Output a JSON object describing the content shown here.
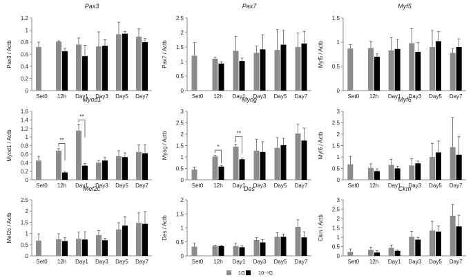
{
  "legend": {
    "items": [
      {
        "label": "1G",
        "color": "#8c8c8c"
      },
      {
        "label": "10⁻⁶G",
        "color": "#000000"
      }
    ]
  },
  "chart_data": [
    {
      "type": "bar",
      "title": "Pax3",
      "ylabel": "Pax3 / Actb",
      "ylim": [
        0,
        1.2
      ],
      "yticks": [
        "0",
        "0.2",
        "0.4",
        "0.6",
        "0.8",
        "1",
        "1.2"
      ],
      "categories": [
        "Set0",
        "12h",
        "Day1",
        "Day3",
        "Day5",
        "Day7"
      ],
      "series": [
        {
          "name": "1G",
          "color": "#8c8c8c",
          "values": [
            0.72,
            0.81,
            0.76,
            0.73,
            0.93,
            0.89
          ],
          "errors": [
            0.08,
            0.01,
            0.11,
            0.24,
            0.2,
            0.13
          ]
        },
        {
          "name": "10⁻⁶G",
          "color": "#000000",
          "values": [
            null,
            0.65,
            0.57,
            0.74,
            0.94,
            0.8
          ],
          "errors": [
            null,
            0.05,
            0.18,
            0.1,
            0.04,
            0.06
          ]
        }
      ],
      "annotations": []
    },
    {
      "type": "bar",
      "title": "Pax7",
      "ylabel": "Pax7 / Actb",
      "ylim": [
        0,
        2.5
      ],
      "yticks": [
        "0",
        "0.5",
        "1",
        "1.5",
        "2",
        "2.5"
      ],
      "categories": [
        "Set0",
        "12h",
        "Day1",
        "Day3",
        "Day5",
        "Day7"
      ],
      "series": [
        {
          "name": "1G",
          "color": "#8c8c8c",
          "values": [
            1.2,
            1.1,
            1.37,
            1.3,
            1.4,
            1.5
          ],
          "errors": [
            0.45,
            0.05,
            0.5,
            0.23,
            0.7,
            0.48
          ]
        },
        {
          "name": "10⁻⁶G",
          "color": "#000000",
          "values": [
            null,
            0.93,
            1.02,
            1.42,
            1.58,
            1.62
          ],
          "errors": [
            null,
            0.06,
            0.1,
            0.5,
            0.5,
            0.42
          ]
        }
      ],
      "annotations": []
    },
    {
      "type": "bar",
      "title": "Myf5",
      "ylabel": "Myf5 / Actb",
      "ylim": [
        0,
        1.5
      ],
      "yticks": [
        "0",
        "0.5",
        "1",
        "1.5"
      ],
      "categories": [
        "Set0",
        "12h",
        "Day1",
        "Day3",
        "Day5",
        "Day7"
      ],
      "series": [
        {
          "name": "1G",
          "color": "#8c8c8c",
          "values": [
            0.87,
            0.88,
            0.83,
            0.98,
            0.9,
            0.78
          ],
          "errors": [
            0.08,
            0.14,
            0.27,
            0.3,
            0.35,
            0.09
          ]
        },
        {
          "name": "10⁻⁶G",
          "color": "#000000",
          "values": [
            null,
            0.7,
            0.86,
            0.8,
            1.02,
            0.9
          ],
          "errors": [
            null,
            0.06,
            0.2,
            0.19,
            0.2,
            0.17
          ]
        }
      ],
      "annotations": []
    },
    {
      "type": "bar",
      "title": "Myod1",
      "ylabel": "Myod1 / Actb",
      "ylim": [
        0,
        1.6
      ],
      "yticks": [
        "0",
        "0.2",
        "0.4",
        "0.6",
        "0.8",
        "1",
        "1.2",
        "1.4",
        "1.6"
      ],
      "categories": [
        "Set0",
        "12h",
        "Day1",
        "Day3",
        "Day5",
        "Day7"
      ],
      "series": [
        {
          "name": "1G",
          "color": "#8c8c8c",
          "values": [
            0.45,
            0.68,
            1.15,
            0.4,
            0.55,
            0.65
          ],
          "errors": [
            0.1,
            0.05,
            0.15,
            0.05,
            0.13,
            0.17
          ]
        },
        {
          "name": "10⁻⁶G",
          "color": "#000000",
          "values": [
            null,
            0.17,
            0.33,
            0.45,
            0.53,
            0.62
          ],
          "errors": [
            null,
            0.02,
            0.05,
            0.07,
            0.1,
            0.2
          ]
        }
      ],
      "annotations": [
        {
          "category": "12h",
          "label": "**",
          "level": 0.85
        },
        {
          "category": "Day1",
          "label": "**",
          "level": 1.4
        }
      ]
    },
    {
      "type": "bar",
      "title": "Myog",
      "ylabel": "Myog / Actb",
      "ylim": [
        0,
        3
      ],
      "yticks": [
        "0",
        "0.5",
        "1",
        "1.5",
        "2",
        "2.5",
        "3"
      ],
      "categories": [
        "Set0",
        "12h",
        "Day1",
        "Day3",
        "Day5",
        "Day7"
      ],
      "series": [
        {
          "name": "1G",
          "color": "#8c8c8c",
          "values": [
            0.45,
            1.02,
            1.45,
            1.28,
            1.4,
            2.03
          ],
          "errors": [
            0.1,
            0.06,
            0.1,
            0.5,
            0.45,
            0.4
          ]
        },
        {
          "name": "10⁻⁶G",
          "color": "#000000",
          "values": [
            null,
            0.58,
            0.9,
            1.22,
            1.52,
            1.72
          ],
          "errors": [
            null,
            0.05,
            0.06,
            0.45,
            0.3,
            0.55
          ]
        }
      ],
      "annotations": [
        {
          "category": "12h",
          "label": "*",
          "level": 1.3
        },
        {
          "category": "Day1",
          "label": "**",
          "level": 1.9
        }
      ]
    },
    {
      "type": "bar",
      "title": "Myf6",
      "ylabel": "Myf6 / Actb",
      "ylim": [
        0,
        3
      ],
      "yticks": [
        "0",
        "0.5",
        "1",
        "1.5",
        "2",
        "2.5",
        "3"
      ],
      "categories": [
        "Set0",
        "12h",
        "Day1",
        "Day3",
        "Day5",
        "Day7"
      ],
      "series": [
        {
          "name": "1G",
          "color": "#8c8c8c",
          "values": [
            0.68,
            0.52,
            0.65,
            0.63,
            1.0,
            1.43
          ],
          "errors": [
            0.35,
            0.18,
            0.25,
            0.3,
            0.6,
            1.3
          ]
        },
        {
          "name": "10⁻⁶G",
          "color": "#000000",
          "values": [
            null,
            0.38,
            0.5,
            0.72,
            1.2,
            1.1
          ],
          "errors": [
            null,
            0.1,
            0.1,
            0.1,
            0.5,
            0.8
          ]
        }
      ],
      "annotations": []
    },
    {
      "type": "bar",
      "title": "Mef2c",
      "ylabel": "Mef2c / Actb",
      "ylim": [
        0,
        2.5
      ],
      "yticks": [
        "0",
        "0.5",
        "1",
        "1.5",
        "2",
        "2.5"
      ],
      "categories": [
        "Set0",
        "12h",
        "Day1",
        "Day3",
        "Day5",
        "Day7"
      ],
      "series": [
        {
          "name": "1G",
          "color": "#8c8c8c",
          "values": [
            0.68,
            0.74,
            0.76,
            0.93,
            1.18,
            1.47
          ],
          "errors": [
            0.3,
            0.25,
            0.3,
            0.2,
            0.3,
            0.45
          ]
        },
        {
          "name": "10⁻⁶G",
          "color": "#000000",
          "values": [
            null,
            0.66,
            0.73,
            0.7,
            1.35,
            1.43
          ],
          "errors": [
            null,
            0.15,
            0.35,
            0.08,
            0.4,
            0.55
          ]
        }
      ],
      "annotations": []
    },
    {
      "type": "bar",
      "title": "Des",
      "ylabel": "Des / Actb",
      "ylim": [
        0,
        2
      ],
      "yticks": [
        "0",
        "0.5",
        "1",
        "1.5",
        "2"
      ],
      "categories": [
        "Set0",
        "12h",
        "Day1",
        "Day3",
        "Day5",
        "Day7"
      ],
      "series": [
        {
          "name": "1G",
          "color": "#8c8c8c",
          "values": [
            0.33,
            0.36,
            0.35,
            0.57,
            0.68,
            1.04
          ],
          "errors": [
            0.12,
            0.02,
            0.1,
            0.08,
            0.15,
            0.25
          ]
        },
        {
          "name": "10⁻⁶G",
          "color": "#000000",
          "values": [
            null,
            0.35,
            0.31,
            0.48,
            0.68,
            0.66
          ],
          "errors": [
            null,
            0.03,
            0.06,
            0.1,
            0.1,
            0.2
          ]
        }
      ],
      "annotations": []
    },
    {
      "type": "bar",
      "title": "Ckm",
      "ylabel": "Ckm / Actb",
      "ylim": [
        0,
        3
      ],
      "yticks": [
        "0",
        "0.5",
        "1",
        "1.5",
        "2",
        "2.5",
        "3"
      ],
      "categories": [
        "Set0",
        "12h",
        "Day1",
        "Day3",
        "Day5",
        "Day7"
      ],
      "series": [
        {
          "name": "1G",
          "color": "#8c8c8c",
          "values": [
            0.22,
            0.32,
            0.43,
            1.02,
            1.35,
            2.15
          ],
          "errors": [
            0.15,
            0.15,
            0.15,
            0.3,
            0.5,
            0.6
          ]
        },
        {
          "name": "10⁻⁶G",
          "color": "#000000",
          "values": [
            null,
            0.18,
            0.27,
            0.87,
            1.3,
            1.58
          ],
          "errors": [
            null,
            0.1,
            0.05,
            0.12,
            0.3,
            0.6
          ]
        }
      ],
      "annotations": []
    }
  ]
}
